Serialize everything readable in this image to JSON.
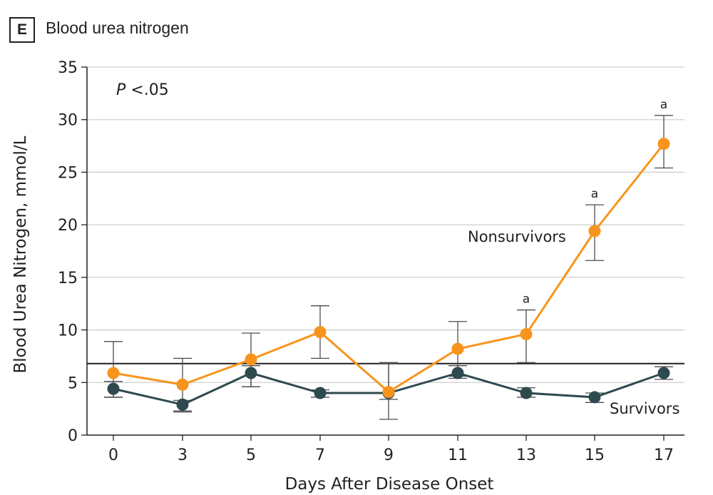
{
  "panel": {
    "letter": "E",
    "title": "Blood urea nitrogen"
  },
  "colors": {
    "nonsurvivors": "#f7941d",
    "survivors": "#2e4a4f",
    "grid": "#cfcfcf",
    "axis": "#231f20"
  },
  "chart_data": {
    "type": "line",
    "title": "Blood urea nitrogen",
    "xlabel": "Days After Disease Onset",
    "ylabel": "Blood Urea Nitrogen, mmol/L",
    "ylim": [
      0,
      35
    ],
    "yticks": [
      0,
      5,
      10,
      15,
      20,
      25,
      30,
      35
    ],
    "categories": [
      "0",
      "3",
      "5",
      "7",
      "9",
      "11",
      "13",
      "15",
      "17"
    ],
    "grid": true,
    "annotation": "P <.05",
    "reference_line": 6.8,
    "series": [
      {
        "name": "Nonsurvivors",
        "color": "#f7941d",
        "values": [
          5.9,
          4.8,
          7.2,
          9.8,
          4.1,
          8.2,
          9.6,
          19.4,
          27.7
        ],
        "err_upper": [
          8.9,
          7.3,
          9.7,
          12.3,
          6.9,
          10.8,
          11.9,
          21.9,
          30.4
        ],
        "err_lower": [
          3.6,
          2.2,
          4.6,
          7.3,
          1.5,
          5.6,
          6.9,
          16.6,
          25.4
        ],
        "significance": [
          "",
          "",
          "",
          "",
          "",
          "",
          "a",
          "a",
          "a"
        ]
      },
      {
        "name": "Survivors",
        "color": "#2e4a4f",
        "values": [
          4.4,
          2.9,
          5.9,
          4.0,
          4.0,
          5.9,
          4.0,
          3.6,
          5.9
        ],
        "err_upper": [
          5.1,
          3.3,
          6.6,
          4.3,
          6.8,
          6.6,
          4.5,
          4.0,
          6.5
        ],
        "err_lower": [
          3.6,
          2.3,
          4.6,
          3.6,
          3.4,
          5.4,
          3.6,
          3.1,
          5.3
        ]
      }
    ]
  }
}
